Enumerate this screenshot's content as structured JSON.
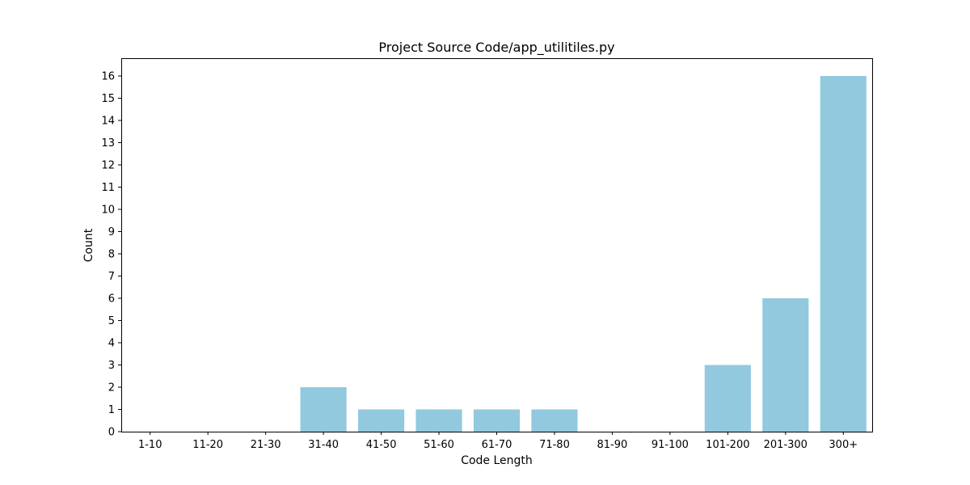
{
  "chart_data": {
    "type": "bar",
    "title": "Project Source Code/app_utilitiles.py",
    "xlabel": "Code Length",
    "ylabel": "Count",
    "categories": [
      "1-10",
      "11-20",
      "21-30",
      "31-40",
      "41-50",
      "51-60",
      "61-70",
      "71-80",
      "81-90",
      "91-100",
      "101-200",
      "201-300",
      "300+"
    ],
    "values": [
      0,
      0,
      0,
      2,
      1,
      1,
      1,
      1,
      0,
      0,
      3,
      6,
      16
    ],
    "yticks": [
      0,
      1,
      2,
      3,
      4,
      5,
      6,
      7,
      8,
      9,
      10,
      11,
      12,
      13,
      14,
      15,
      16
    ],
    "ylim": [
      0,
      16.8
    ],
    "grid": false,
    "bar_color": "#92c9de"
  }
}
